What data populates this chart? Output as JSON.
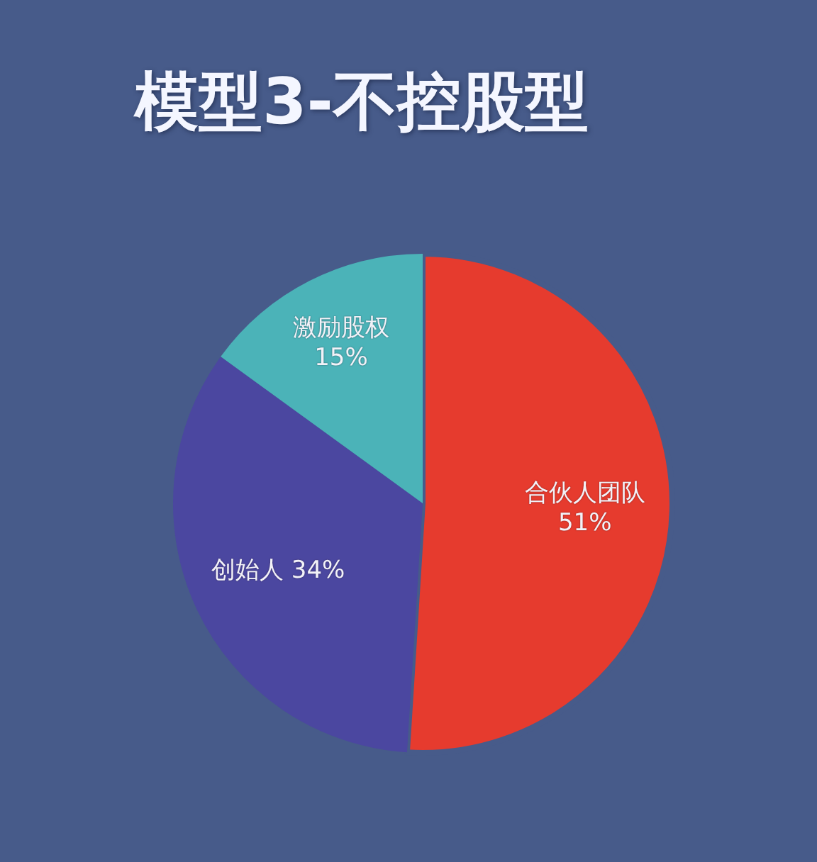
{
  "chart_data": {
    "type": "pie",
    "title": "模型3-不控股型",
    "categories": [
      "合伙人团队",
      "创始人",
      "激励股权"
    ],
    "values": [
      51,
      34,
      15
    ],
    "colors": [
      "#e63b2e",
      "#4b47a0",
      "#4bb3b8"
    ],
    "value_labels": [
      "51%",
      "34%",
      "15%"
    ]
  }
}
